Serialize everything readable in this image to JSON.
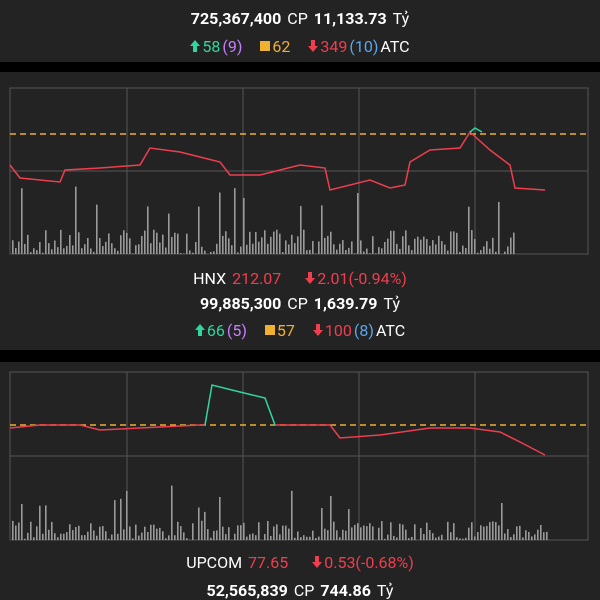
{
  "top": {
    "volume": "725,367,400",
    "volume_unit": "CP",
    "value": "11,133.73",
    "value_unit": "Tỷ",
    "advances": "58",
    "advances_ceiling": "(9)",
    "unchanged": "62",
    "declines": "349",
    "declines_floor": "(10)",
    "session": "ATC"
  },
  "hnx": {
    "name": "HNX",
    "index": "212.07",
    "change": "2.01(-0.94%)",
    "volume": "99,885,300",
    "volume_unit": "CP",
    "value": "1,639.79",
    "value_unit": "Tỷ",
    "advances": "66",
    "advances_ceiling": "(5)",
    "unchanged": "57",
    "declines": "100",
    "declines_floor": "(8)",
    "session": "ATC"
  },
  "upcom": {
    "name": "UPCOM",
    "index": "77.65",
    "change": "0.53(-0.68%)",
    "volume": "52,565,839",
    "volume_unit": "CP",
    "value": "744.86",
    "value_unit": "Tỷ"
  }
}
